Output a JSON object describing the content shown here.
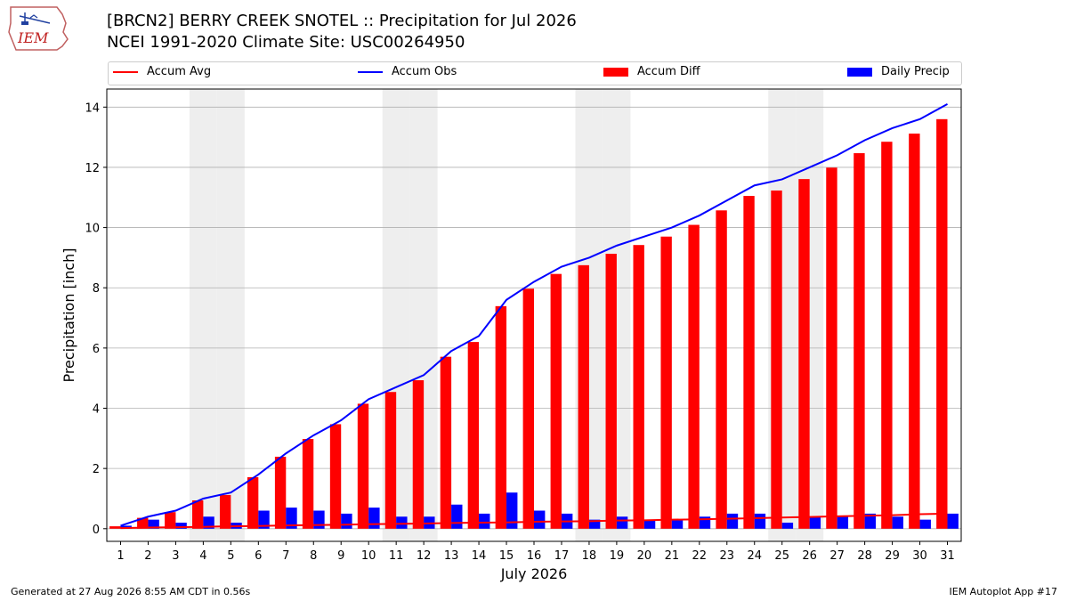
{
  "header": {
    "title_line1": "[BRCN2] BERRY CREEK SNOTEL :: Precipitation for Jul 2026",
    "title_line2": "NCEI 1991-2020 Climate Site: USC00264950",
    "logo_text": "IEM"
  },
  "legend": {
    "accum_avg": "Accum Avg",
    "accum_obs": "Accum Obs",
    "accum_diff": "Accum Diff",
    "daily_precip": "Daily Precip"
  },
  "footer": {
    "generated": "Generated at 27 Aug 2026 8:55 AM CDT in 0.56s",
    "app": "IEM Autoplot App #17"
  },
  "colors": {
    "avg": "#ff0000",
    "obs": "#0000ff",
    "diff": "#ff0000",
    "daily": "#0000ff",
    "weekend_shade": "#eeeeee",
    "grid": "#b0b0b0"
  },
  "chart_data": {
    "type": "bar",
    "title": "[BRCN2] BERRY CREEK SNOTEL :: Precipitation for Jul 2026",
    "xlabel": "July 2026",
    "ylabel": "Precipitation [inch]",
    "ylim": [
      -0.42,
      14.6
    ],
    "yticks": [
      0,
      2,
      4,
      6,
      8,
      10,
      12,
      14
    ],
    "grid": true,
    "legend_position": "top",
    "categories": [
      1,
      2,
      3,
      4,
      5,
      6,
      7,
      8,
      9,
      10,
      11,
      12,
      13,
      14,
      15,
      16,
      17,
      18,
      19,
      20,
      21,
      22,
      23,
      24,
      25,
      26,
      27,
      28,
      29,
      30,
      31
    ],
    "shaded_days": [
      4,
      5,
      11,
      12,
      18,
      19,
      25,
      26
    ],
    "series": [
      {
        "name": "Accum Avg",
        "kind": "line",
        "values": [
          0.02,
          0.04,
          0.05,
          0.06,
          0.08,
          0.09,
          0.11,
          0.12,
          0.13,
          0.15,
          0.16,
          0.17,
          0.19,
          0.2,
          0.21,
          0.23,
          0.24,
          0.25,
          0.27,
          0.28,
          0.3,
          0.31,
          0.33,
          0.35,
          0.37,
          0.39,
          0.41,
          0.43,
          0.45,
          0.48,
          0.5
        ]
      },
      {
        "name": "Accum Obs",
        "kind": "line",
        "values": [
          0.1,
          0.4,
          0.6,
          1.0,
          1.2,
          1.8,
          2.5,
          3.1,
          3.6,
          4.3,
          4.7,
          5.1,
          5.9,
          6.4,
          7.6,
          8.2,
          8.7,
          9.0,
          9.4,
          9.7,
          10.0,
          10.4,
          10.9,
          11.4,
          11.6,
          12.0,
          12.4,
          12.9,
          13.3,
          13.6,
          14.1
        ]
      },
      {
        "name": "Accum Diff",
        "kind": "bar",
        "values": [
          0.08,
          0.36,
          0.55,
          0.94,
          1.12,
          1.71,
          2.39,
          2.98,
          3.47,
          4.15,
          4.54,
          4.93,
          5.71,
          6.2,
          7.39,
          7.97,
          8.46,
          8.75,
          9.13,
          9.42,
          9.7,
          10.09,
          10.57,
          11.05,
          11.23,
          11.61,
          11.99,
          12.47,
          12.85,
          13.12,
          13.6
        ]
      },
      {
        "name": "Daily Precip",
        "kind": "bar",
        "values": [
          0.1,
          0.3,
          0.2,
          0.4,
          0.2,
          0.6,
          0.7,
          0.6,
          0.5,
          0.7,
          0.4,
          0.4,
          0.8,
          0.5,
          1.2,
          0.6,
          0.5,
          0.3,
          0.4,
          0.3,
          0.3,
          0.4,
          0.5,
          0.5,
          0.2,
          0.4,
          0.4,
          0.5,
          0.4,
          0.3,
          0.5
        ]
      }
    ]
  }
}
